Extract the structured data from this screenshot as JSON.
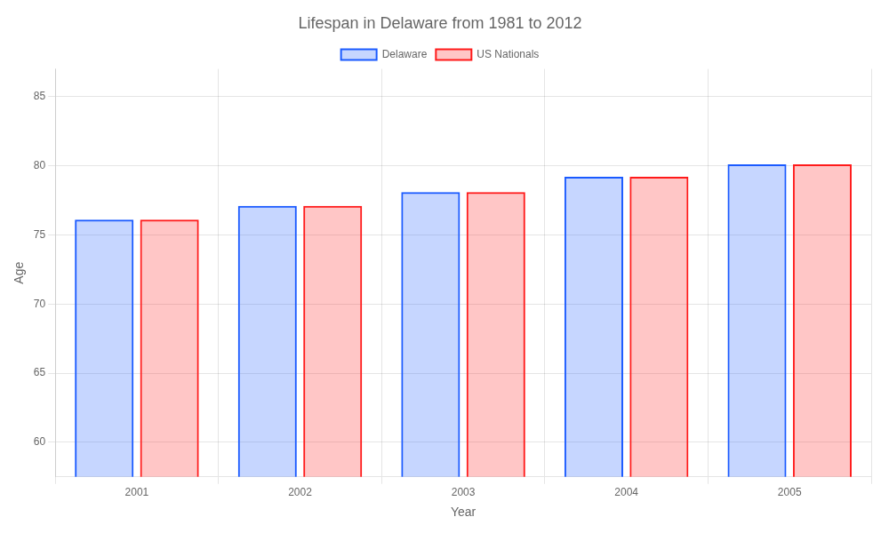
{
  "chart_data": {
    "type": "bar",
    "title": "Lifespan in Delaware from 1981 to 2012",
    "xlabel": "Year",
    "ylabel": "Age",
    "categories": [
      "2001",
      "2002",
      "2003",
      "2004",
      "2005"
    ],
    "series": [
      {
        "name": "Delaware",
        "color": "#1a5aff",
        "values": [
          76.1,
          77.1,
          78.1,
          79.2,
          80.1
        ]
      },
      {
        "name": "US Nationals",
        "color": "#ff1a1a",
        "values": [
          76.1,
          77.1,
          78.1,
          79.2,
          80.1
        ]
      }
    ],
    "ylim": [
      57.5,
      87
    ],
    "yticks": [
      60,
      65,
      70,
      75,
      80,
      85
    ],
    "grid": true,
    "legend": "top"
  }
}
